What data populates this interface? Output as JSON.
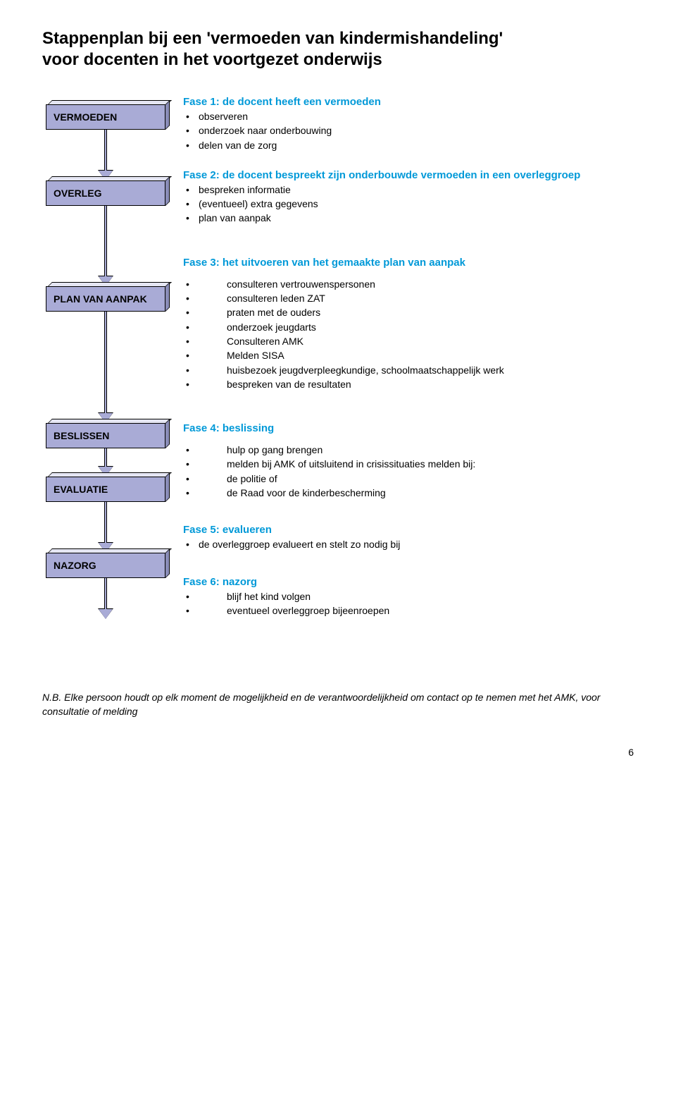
{
  "title_line1": "Stappenplan bij een 'vermoeden van kindermishandeling'",
  "title_line2": "voor docenten in het voortgezet onderwijs",
  "colors": {
    "box_front": "#a9abd6",
    "box_top": "#e5e6f3",
    "box_side": "#8a8db8",
    "box_border": "#000000",
    "accent_blue": "#0099d8",
    "text": "#000000",
    "background": "#ffffff"
  },
  "boxes": {
    "b1": "VERMOEDEN",
    "b2": "OVERLEG",
    "b3": "PLAN VAN AANPAK",
    "b4": "BESLISSEN",
    "b5": "EVALUATIE",
    "b6": "NAZORG"
  },
  "arrows": {
    "a1_height": 58,
    "a2_height": 100,
    "a3_height": 144,
    "a4_height": 26,
    "a5_height": 58,
    "a6_height": 44
  },
  "fase1": {
    "title": "Fase 1: de docent heeft een vermoeden",
    "i1": "observeren",
    "i2": "onderzoek naar onderbouwing",
    "i3": "delen van de zorg"
  },
  "fase2": {
    "title": "Fase 2: de docent bespreekt zijn onderbouwde vermoeden in een overleggroep",
    "i1": "bespreken informatie",
    "i2": "(eventueel) extra gegevens",
    "i3": "plan van aanpak"
  },
  "fase3": {
    "title": "Fase 3: het uitvoeren van het gemaakte plan van aanpak",
    "i1": "consulteren vertrouwenspersonen",
    "i2": "consulteren leden ZAT",
    "i3": "praten met de ouders",
    "i4": "onderzoek jeugdarts",
    "i5": "Consulteren AMK",
    "i6": "Melden SISA",
    "i7": "huisbezoek jeugdverpleegkundige, schoolmaatschappelijk werk",
    "i8": "bespreken van de resultaten"
  },
  "fase4": {
    "title": "Fase 4: beslissing",
    "i1": "hulp op gang brengen",
    "i2": "melden bij AMK of uitsluitend in crisissituaties melden bij:",
    "i3": "de politie of",
    "i4": "de Raad voor de kinderbescherming"
  },
  "fase5": {
    "title": "Fase 5: evalueren",
    "i1": "de overleggroep evalueert en stelt zo nodig bij"
  },
  "fase6": {
    "title": "Fase 6: nazorg",
    "i1": "blijf het kind volgen",
    "i2": "eventueel overleggroep bijeenroepen"
  },
  "footnote": "N.B. Elke persoon houdt op elk moment de mogelijkheid en de verantwoordelijkheid om contact op te nemen met het AMK, voor consultatie of melding",
  "pagenum": "6"
}
